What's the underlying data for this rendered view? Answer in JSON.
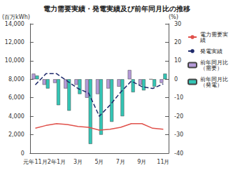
{
  "chart_data": {
    "type": "bar",
    "title": "電力需要実績・発電実績及び前年同月比の推移",
    "ylabel": "(百万kWh)",
    "y2label": "(%)",
    "categories": [
      "元年11月",
      null,
      "2年1月",
      null,
      "3月",
      null,
      "5月",
      null,
      "7月",
      null,
      "9月",
      null,
      "11月"
    ],
    "series": [
      {
        "name": "電力需要実績",
        "type": "line",
        "color": "#e0504a",
        "line_style": "solid",
        "marker": "none",
        "values": [
          2700,
          3000,
          3200,
          3100,
          2900,
          2800,
          2500,
          2600,
          2800,
          3200,
          3200,
          2700,
          2600
        ]
      },
      {
        "name": "発電実績",
        "type": "line",
        "color": "#1f2a6b",
        "line_style": "dashed",
        "marker": "none",
        "values": [
          7400,
          8600,
          8600,
          7800,
          7000,
          6500,
          4000,
          5200,
          6600,
          7800,
          7200,
          7000,
          7500
        ]
      },
      {
        "name": "前年同月比（需要）",
        "type": "bar",
        "axis": "y2",
        "color": "#b49ad8",
        "values": [
          3,
          -3,
          -2,
          -5,
          -3,
          -10,
          -8,
          -5,
          -4,
          5,
          -3,
          0,
          -2
        ]
      },
      {
        "name": "前年同月比（発電）",
        "type": "bar",
        "axis": "y2",
        "color": "#33c5b5",
        "values": [
          2,
          -5,
          -14,
          -17,
          -8,
          -35,
          -30,
          -23,
          -20,
          -7,
          -6,
          -4,
          3
        ]
      }
    ],
    "ylim": [
      0,
      14000
    ],
    "yticks": [
      0,
      {
        "value": 2000,
        "label": "2,000"
      },
      {
        "value": 4000,
        "label": "4,000"
      },
      {
        "value": 6000,
        "label": "6,000"
      },
      {
        "value": 8000,
        "label": "8,000"
      },
      {
        "value": 10000,
        "label": "10,000"
      },
      {
        "value": 12000,
        "label": "12,000"
      },
      {
        "value": 14000,
        "label": "14,000"
      }
    ],
    "y2lim": [
      -40,
      30
    ],
    "y2ticks": [
      -40,
      -30,
      -20,
      -10,
      0,
      10,
      20,
      30
    ],
    "grid": false,
    "legend": "right"
  }
}
